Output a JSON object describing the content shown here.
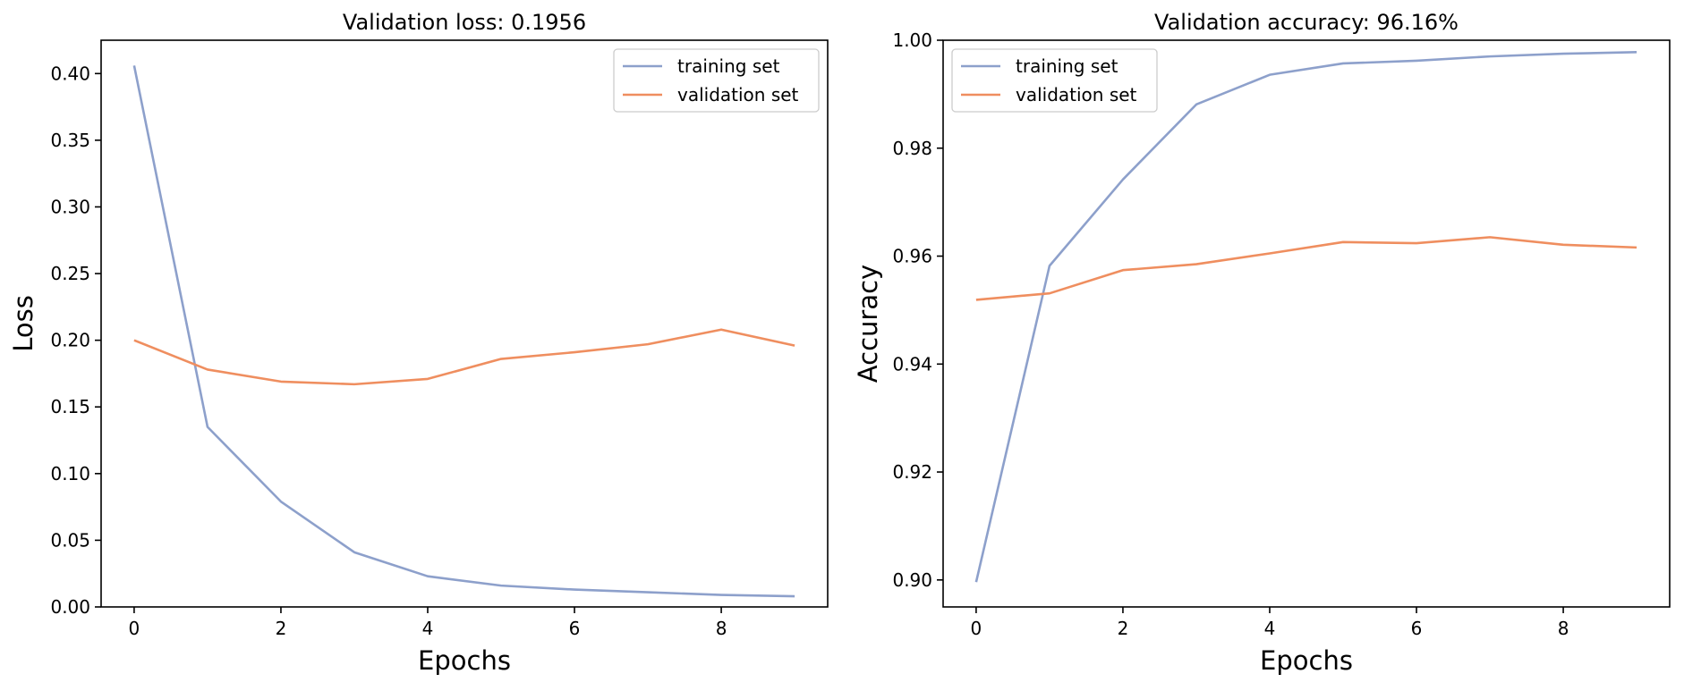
{
  "colors": {
    "training": "#8da0cb",
    "validation": "#ef8e5f",
    "axis": "#000000",
    "legend_border": "#cccccc"
  },
  "chart_data": [
    {
      "type": "line",
      "title": "Validation loss: 0.1956",
      "xlabel": "Epochs",
      "ylabel": "Loss",
      "x": [
        0,
        1,
        2,
        3,
        4,
        5,
        6,
        7,
        8,
        9
      ],
      "xlim": [
        -0.45,
        9.45
      ],
      "ylim": [
        0.0,
        0.425
      ],
      "xticks": [
        0,
        2,
        4,
        6,
        8
      ],
      "xtick_labels": [
        "0",
        "2",
        "4",
        "6",
        "8"
      ],
      "yticks": [
        0.0,
        0.05,
        0.1,
        0.15,
        0.2,
        0.25,
        0.3,
        0.35,
        0.4
      ],
      "ytick_labels": [
        "0.00",
        "0.05",
        "0.10",
        "0.15",
        "0.20",
        "0.25",
        "0.30",
        "0.35",
        "0.40"
      ],
      "grid": false,
      "legend_position": "top-right",
      "series": [
        {
          "name": "training set",
          "color_key": "training",
          "values": [
            0.406,
            0.135,
            0.079,
            0.041,
            0.023,
            0.016,
            0.013,
            0.011,
            0.009,
            0.008
          ]
        },
        {
          "name": "validation set",
          "color_key": "validation",
          "values": [
            0.2,
            0.178,
            0.169,
            0.167,
            0.171,
            0.186,
            0.191,
            0.197,
            0.208,
            0.196
          ]
        }
      ]
    },
    {
      "type": "line",
      "title": "Validation accuracy: 96.16%",
      "xlabel": "Epochs",
      "ylabel": "Accuracy",
      "x": [
        0,
        1,
        2,
        3,
        4,
        5,
        6,
        7,
        8,
        9
      ],
      "xlim": [
        -0.45,
        9.45
      ],
      "ylim": [
        0.895,
        1.0
      ],
      "xticks": [
        0,
        2,
        4,
        6,
        8
      ],
      "xtick_labels": [
        "0",
        "2",
        "4",
        "6",
        "8"
      ],
      "yticks": [
        0.9,
        0.92,
        0.94,
        0.96,
        0.98,
        1.0
      ],
      "ytick_labels": [
        "0.90",
        "0.92",
        "0.94",
        "0.96",
        "0.98",
        "1.00"
      ],
      "grid": false,
      "legend_position": "top-left",
      "series": [
        {
          "name": "training set",
          "color_key": "training",
          "values": [
            0.8996,
            0.9582,
            0.9742,
            0.9881,
            0.9936,
            0.9957,
            0.9962,
            0.997,
            0.9975,
            0.9978
          ]
        },
        {
          "name": "validation set",
          "color_key": "validation",
          "values": [
            0.9519,
            0.9531,
            0.9574,
            0.9585,
            0.9605,
            0.9626,
            0.9624,
            0.9635,
            0.9621,
            0.9616
          ]
        }
      ]
    }
  ]
}
